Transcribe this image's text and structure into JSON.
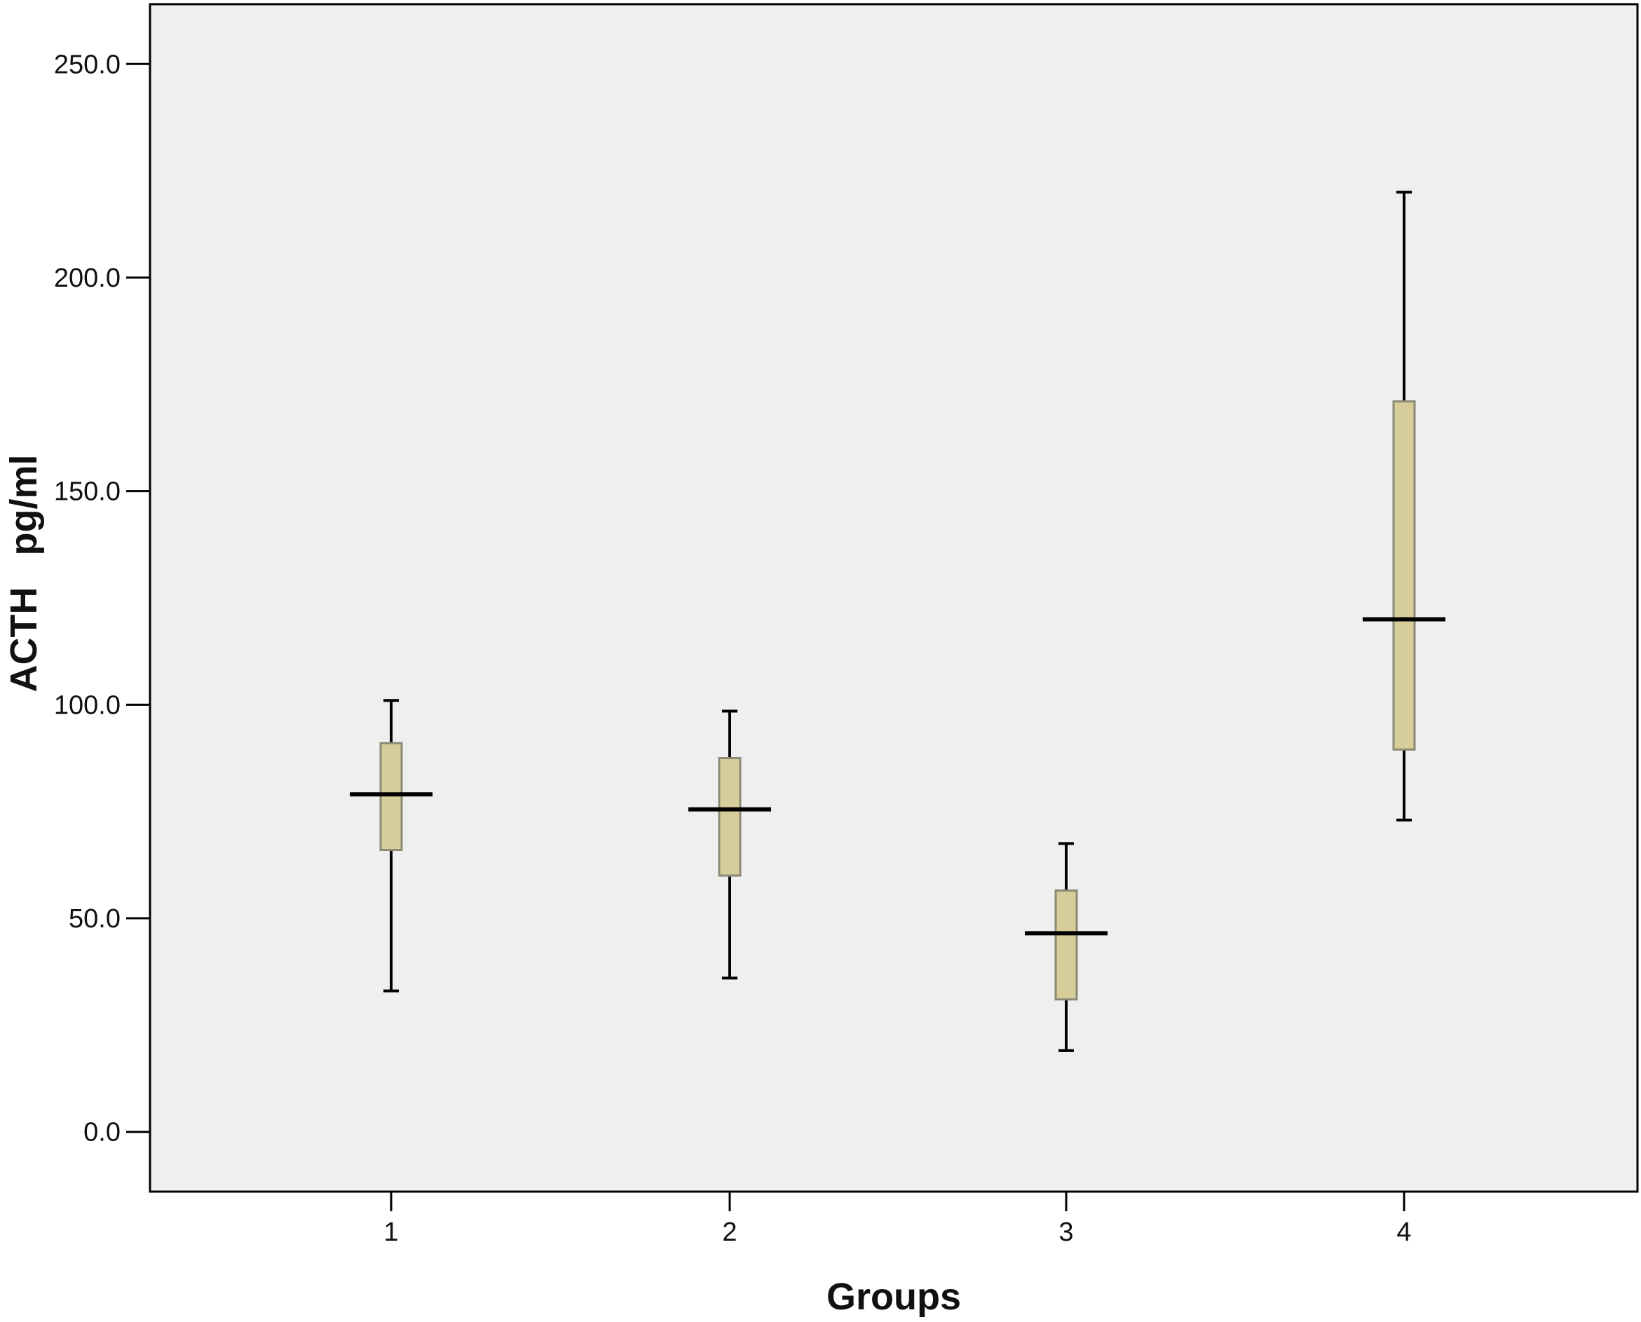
{
  "chart_data": {
    "type": "boxplot",
    "title": "",
    "xlabel": "Groups",
    "ylabel": "ACTH   pg/ml",
    "ylim": [
      -14,
      264
    ],
    "yticks": [
      0,
      50,
      100,
      150,
      200,
      250
    ],
    "ytick_labels": [
      "0.0",
      "50.0",
      "100.0",
      "150.0",
      "200.0",
      "250.0"
    ],
    "categories": [
      "1",
      "2",
      "3",
      "4"
    ],
    "series": [
      {
        "category": "1",
        "min": 33,
        "q1": 66,
        "median": 79,
        "q3": 91,
        "max": 101
      },
      {
        "category": "2",
        "min": 36,
        "q1": 60,
        "median": 75.5,
        "q3": 87.5,
        "max": 98.5
      },
      {
        "category": "3",
        "min": 19,
        "q1": 31,
        "median": 46.5,
        "q3": 56.5,
        "max": 67.5
      },
      {
        "category": "4",
        "min": 73,
        "q1": 89.5,
        "median": 120,
        "q3": 171,
        "max": 220
      }
    ],
    "grid": false,
    "legend": "none",
    "colors": {
      "plot_background": "#efefef",
      "box_fill": "#d6cd9a",
      "box_stroke": "#8a8a76",
      "whisker": "#000000",
      "median": "#000000",
      "axis": "#000000"
    }
  }
}
